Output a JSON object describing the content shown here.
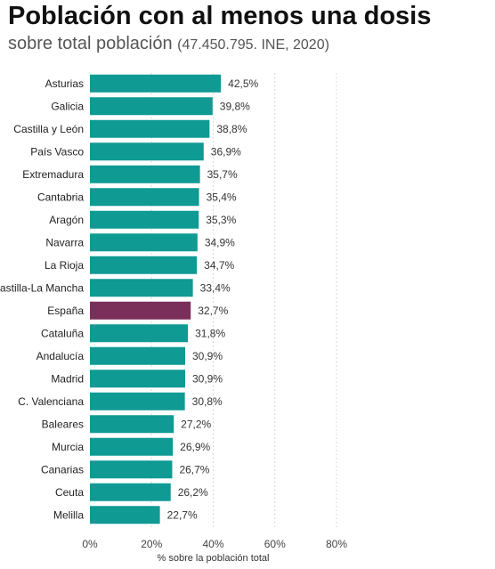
{
  "header": {
    "title": "Población con al menos una dosis",
    "subtitle_main": "sobre total población",
    "subtitle_note": "(47.450.795. INE, 2020)"
  },
  "chart_data": {
    "type": "bar",
    "orientation": "horizontal",
    "title": "Población con al menos una dosis",
    "subtitle": "sobre total población (47.450.795. INE, 2020)",
    "xlabel": "% sobre la población total",
    "ylabel": "",
    "xlim": [
      0,
      80
    ],
    "xticks": [
      0,
      20,
      40,
      60,
      80
    ],
    "tick_suffix": "%",
    "grid": true,
    "categories": [
      "Asturias",
      "Galicia",
      "Castilla y León",
      "País Vasco",
      "Extremadura",
      "Cantabria",
      "Aragón",
      "Navarra",
      "La Rioja",
      "Castilla-La Mancha",
      "España",
      "Cataluña",
      "Andalucía",
      "Madrid",
      "C. Valenciana",
      "Baleares",
      "Murcia",
      "Canarias",
      "Ceuta",
      "Melilla"
    ],
    "values": [
      42.5,
      39.8,
      38.8,
      36.9,
      35.7,
      35.4,
      35.3,
      34.9,
      34.7,
      33.4,
      32.7,
      31.8,
      30.9,
      30.9,
      30.8,
      27.2,
      26.9,
      26.7,
      26.2,
      22.7
    ],
    "value_labels": [
      "42,5%",
      "39,8%",
      "38,8%",
      "36,9%",
      "35,7%",
      "35,4%",
      "35,3%",
      "34,9%",
      "34,7%",
      "33,4%",
      "32,7%",
      "31,8%",
      "30,9%",
      "30,9%",
      "30,8%",
      "27,2%",
      "26,9%",
      "26,7%",
      "26,2%",
      "22,7%"
    ],
    "highlight": "España",
    "colors": {
      "bar": "#0f9a94",
      "highlight": "#7a2f5a",
      "grid": "#cfcfcf"
    }
  }
}
